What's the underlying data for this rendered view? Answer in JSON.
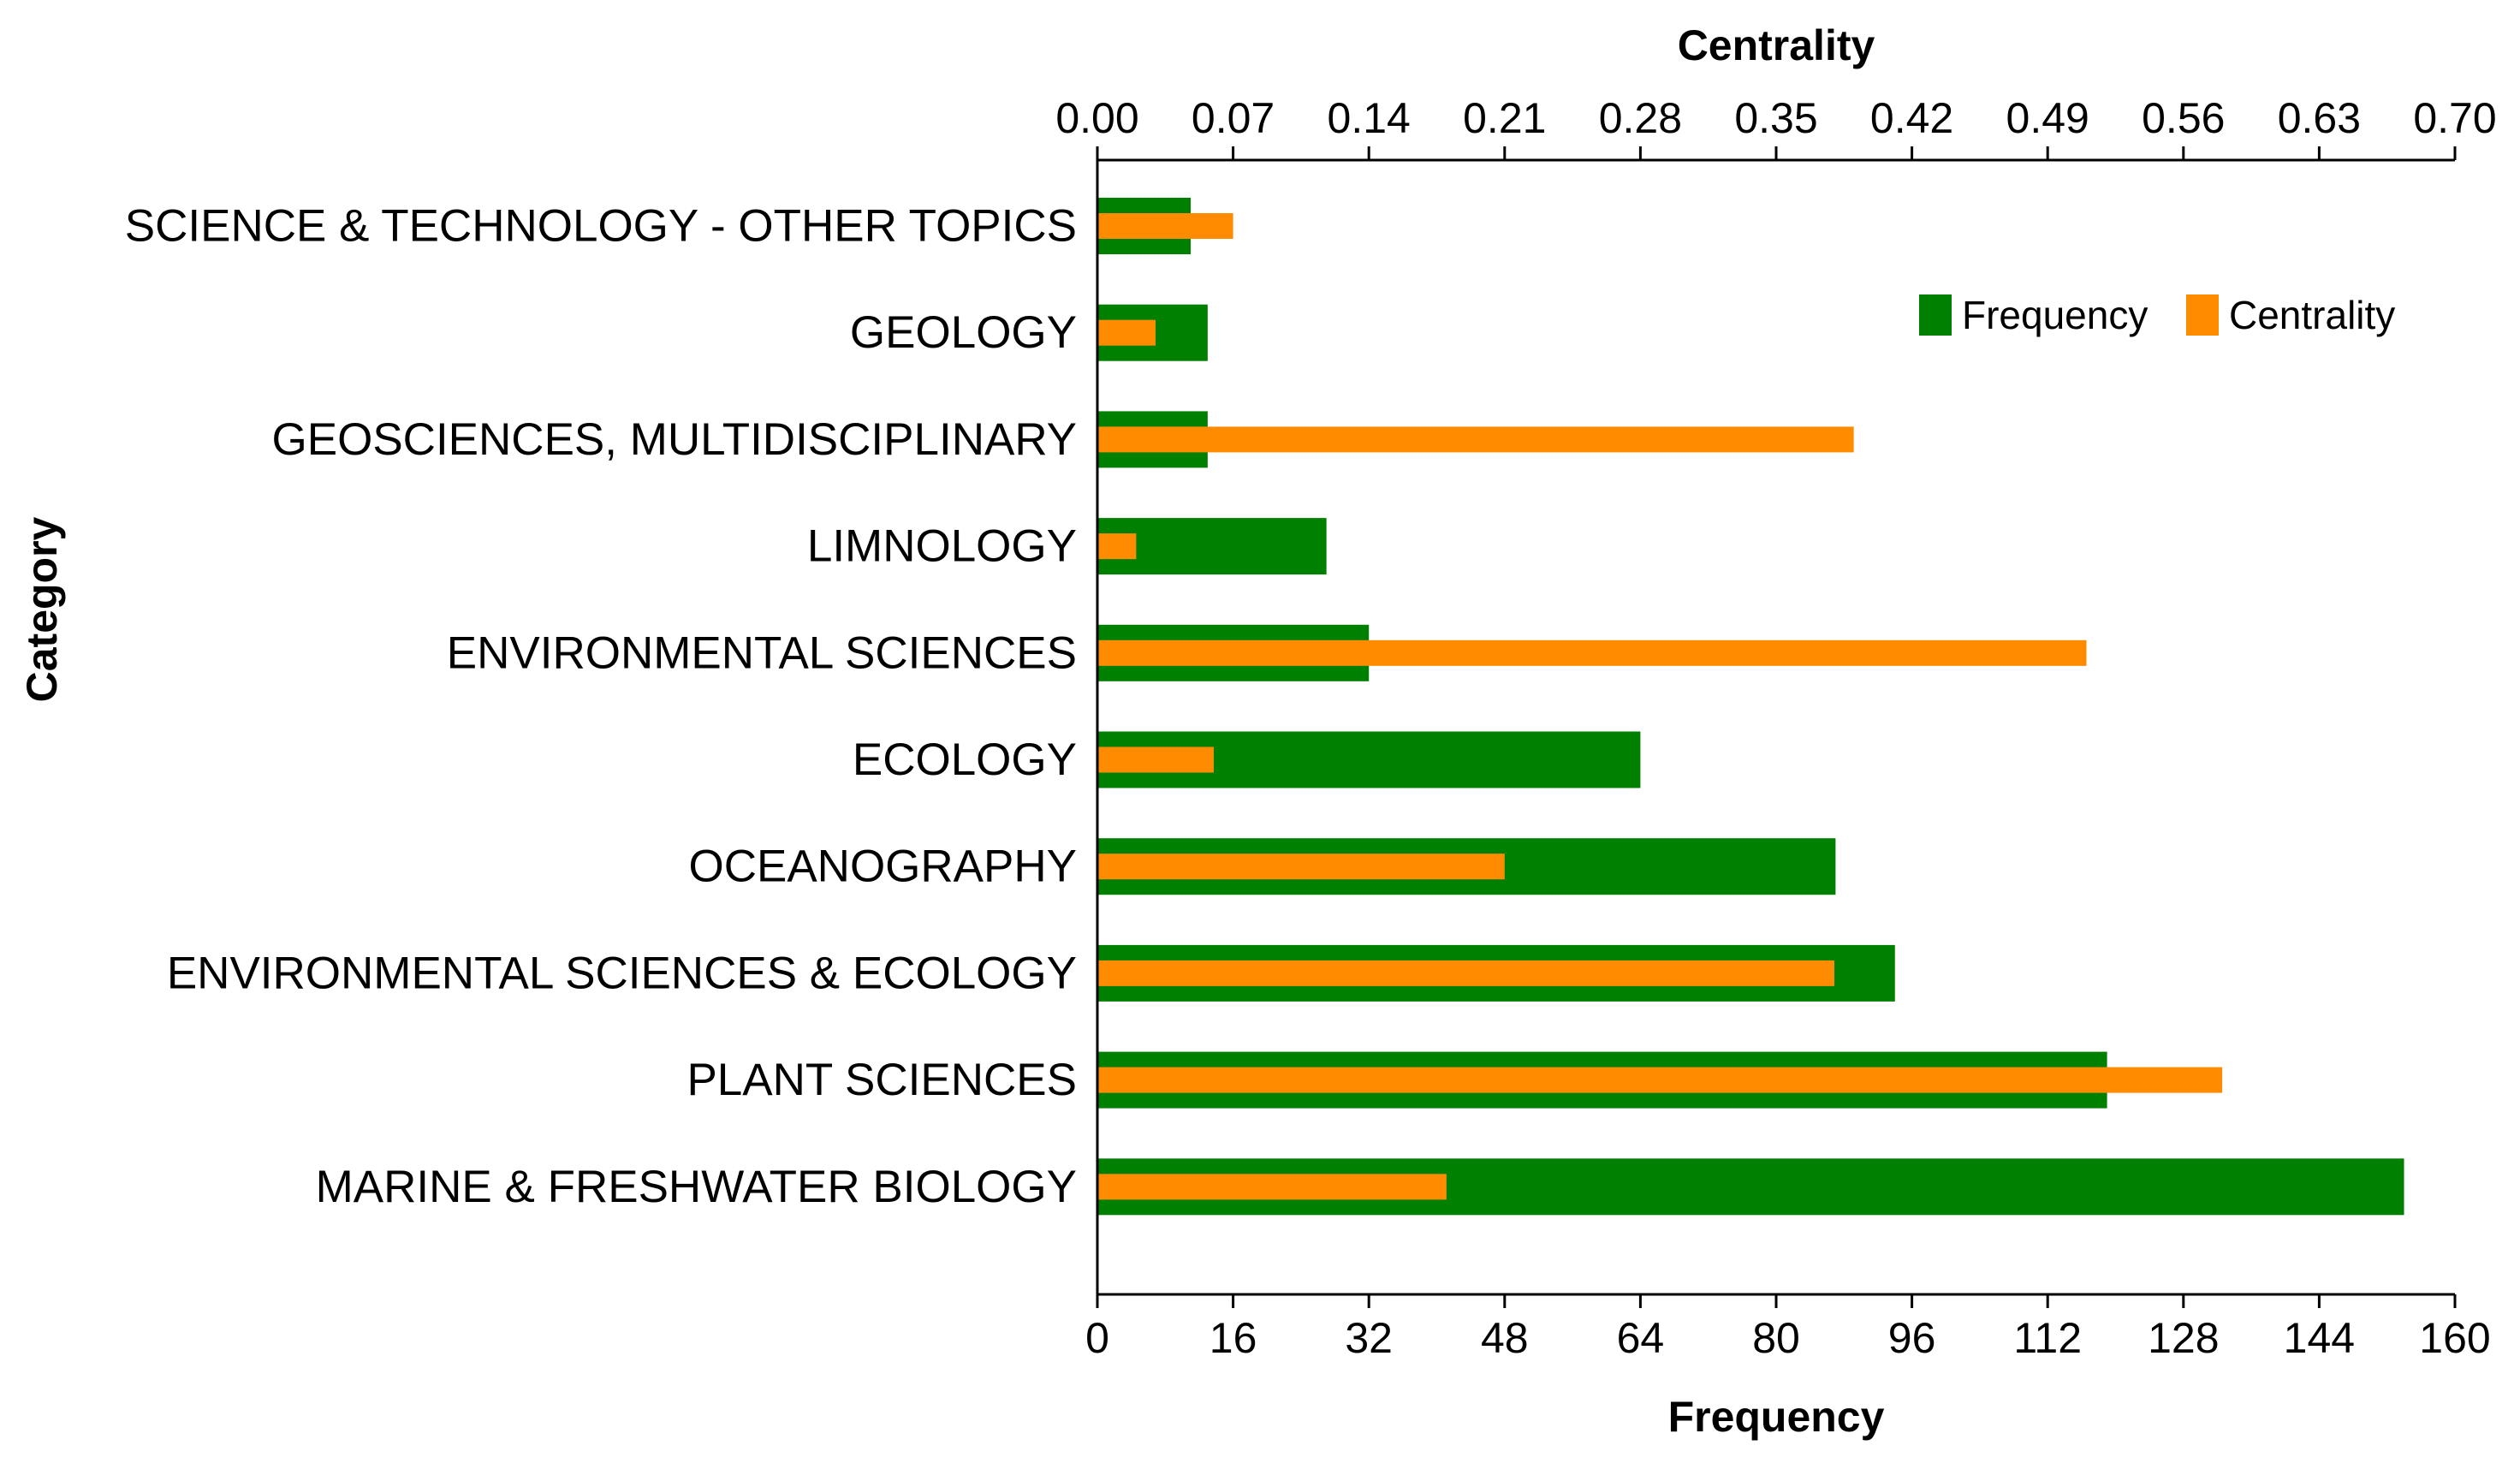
{
  "chart_data": {
    "type": "bar",
    "orientation": "horizontal",
    "categories": [
      "SCIENCE & TECHNOLOGY - OTHER TOPICS",
      "GEOLOGY",
      "GEOSCIENCES, MULTIDISCIPLINARY",
      "LIMNOLOGY",
      "ENVIRONMENTAL SCIENCES",
      "ECOLOGY",
      "OCEANOGRAPHY",
      "ENVIRONMENTAL SCIENCES & ECOLOGY",
      "PLANT SCIENCES",
      "MARINE & FRESHWATER BIOLOGY"
    ],
    "series": [
      {
        "name": "Frequency",
        "axis": "bottom",
        "color": "#008000",
        "values": [
          11,
          13,
          13,
          27,
          32,
          64,
          87,
          94,
          119,
          154
        ]
      },
      {
        "name": "Centrality",
        "axis": "top",
        "color": "#FF8C00",
        "values": [
          0.07,
          0.03,
          0.39,
          0.02,
          0.51,
          0.06,
          0.21,
          0.38,
          0.58,
          0.18
        ]
      }
    ],
    "x_bottom": {
      "label": "Frequency",
      "range": [
        0,
        160
      ],
      "ticks": [
        "0",
        "16",
        "32",
        "48",
        "64",
        "80",
        "96",
        "112",
        "128",
        "144",
        "160"
      ]
    },
    "x_top": {
      "label": "Centrality",
      "range": [
        0,
        0.7
      ],
      "ticks": [
        "0.00",
        "0.07",
        "0.14",
        "0.21",
        "0.28",
        "0.35",
        "0.42",
        "0.49",
        "0.56",
        "0.63",
        "0.70"
      ]
    },
    "ylabel": "Category",
    "legend": {
      "position": "top-right",
      "entries": [
        "Frequency",
        "Centrality"
      ]
    },
    "grid": false
  }
}
